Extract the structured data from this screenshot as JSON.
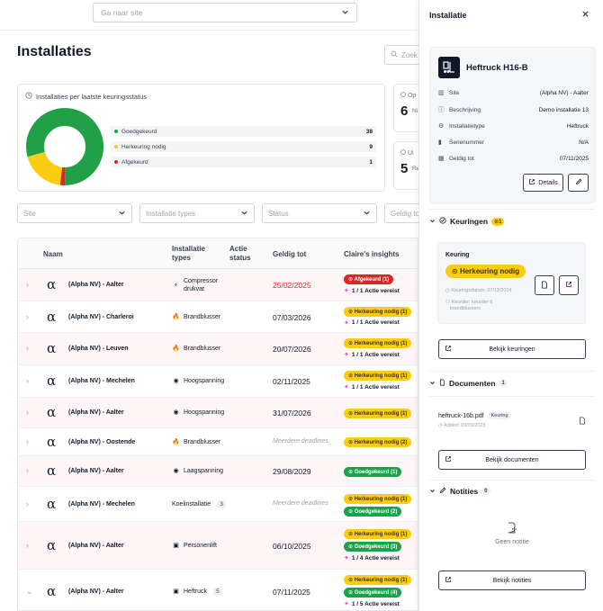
{
  "header": {
    "site_placeholder": "Ga naar site",
    "page_title": "Installaties",
    "search_placeholder": "Zoek"
  },
  "status_chart": {
    "title": "Installaties per laatste keuringsstatus",
    "legend": [
      {
        "label": "Goedgekeurd",
        "count": "38",
        "color": "#22a047"
      },
      {
        "label": "Herkeuring nodig",
        "count": "9",
        "color": "#facc15"
      },
      {
        "label": "Afgekeurd",
        "count": "1",
        "color": "#dc2626"
      }
    ]
  },
  "chart_data": {
    "type": "pie",
    "title": "Installaties per laatste keuringsstatus",
    "categories": [
      "Goedgekeurd",
      "Herkeuring nodig",
      "Afgekeurd"
    ],
    "values": [
      38,
      9,
      1
    ],
    "colors": [
      "#22a047",
      "#facc15",
      "#dc2626"
    ],
    "donut": true
  },
  "stat_cards": [
    {
      "label": "Op",
      "value": "6",
      "sub": "Ni"
    },
    {
      "label": "Ui",
      "value": "5",
      "sub": "Re"
    }
  ],
  "filters": [
    {
      "placeholder": "Site"
    },
    {
      "placeholder": "Installatie types"
    },
    {
      "placeholder": "Status"
    },
    {
      "placeholder": "Geldig to"
    }
  ],
  "table": {
    "headers": [
      "Naam",
      "Installatie types",
      "Actie status",
      "Geldig tot",
      "Claire's insights"
    ],
    "rows": [
      {
        "name": "(Alpha NV) - Aalter",
        "type": "Compressor drukvat",
        "type_icon": "⚡",
        "count": "",
        "date": "25/02/2025",
        "date_style": "red",
        "expanded": false,
        "pills": [
          {
            "text": "Afgekeurd (1)",
            "color": "red"
          }
        ],
        "action": "1 / 1 Actie vereist"
      },
      {
        "name": "(Alpha NV) - Charleroi",
        "type": "Brandblusser",
        "type_icon": "🔥",
        "count": "",
        "date": "07/03/2026",
        "date_style": "",
        "expanded": false,
        "pills": [
          {
            "text": "Herkeuring nodig (1)",
            "color": "yellow"
          }
        ],
        "action": "1 / 1 Actie vereist"
      },
      {
        "name": "(Alpha NV) - Leuven",
        "type": "Brandblusser",
        "type_icon": "🔥",
        "count": "",
        "date": "20/07/2026",
        "date_style": "",
        "expanded": false,
        "pills": [
          {
            "text": "Herkeuring nodig (1)",
            "color": "yellow"
          }
        ],
        "action": "1 / 1 Actie vereist"
      },
      {
        "name": "(Alpha NV) - Mechelen",
        "type": "Hoogspanning",
        "type_icon": "◉",
        "count": "",
        "date": "02/11/2025",
        "date_style": "",
        "expanded": false,
        "pills": [
          {
            "text": "Herkeuring nodig (1)",
            "color": "yellow"
          }
        ],
        "action": "1 / 1 Actie vereist"
      },
      {
        "name": "(Alpha NV) - Aalter",
        "type": "Hoogspanning",
        "type_icon": "◉",
        "count": "",
        "date": "31/07/2026",
        "date_style": "",
        "expanded": false,
        "pills": [
          {
            "text": "Herkeuring nodig (1)",
            "color": "yellow"
          }
        ],
        "action": ""
      },
      {
        "name": "(Alpha NV) - Oostende",
        "type": "Brandblusser",
        "type_icon": "🔥",
        "count": "",
        "date": "Meerdere deadlines",
        "date_style": "deadline",
        "expanded": false,
        "pills": [
          {
            "text": "Herkeuring nodig (2)",
            "color": "yellow"
          }
        ],
        "action": ""
      },
      {
        "name": "(Alpha NV) - Aalter",
        "type": "Laagspanning",
        "type_icon": "◉",
        "count": "",
        "date": "29/08/2029",
        "date_style": "",
        "expanded": false,
        "pills": [
          {
            "text": "Goedgekeurd (1)",
            "color": "green"
          }
        ],
        "action": ""
      },
      {
        "name": "(Alpha NV) - Mechelen",
        "type": "Koelinstallatie",
        "type_icon": "",
        "count": "3",
        "date": "Meerdere deadlines",
        "date_style": "deadline",
        "expanded": false,
        "pills": [
          {
            "text": "Herkeuring nodig (1)",
            "color": "yellow"
          },
          {
            "text": "Goedgekeurd (2)",
            "color": "green"
          }
        ],
        "action": ""
      },
      {
        "name": "(Alpha NV) - Aalter",
        "type": "Personenlift",
        "type_icon": "▣",
        "count": "",
        "date": "06/10/2025",
        "date_style": "",
        "expanded": false,
        "pills": [
          {
            "text": "Herkeuring nodig (1)",
            "color": "yellow"
          },
          {
            "text": "Goedgekeurd (3)",
            "color": "green"
          }
        ],
        "action": "1 / 4 Actie vereist"
      },
      {
        "name": "(Alpha NV) - Aalter",
        "type": "Heftruck",
        "type_icon": "▣",
        "count": "5",
        "date": "07/11/2025",
        "date_style": "",
        "expanded": true,
        "pills": [
          {
            "text": "Herkeuring nodig (1)",
            "color": "yellow"
          },
          {
            "text": "Goedgekeurd (4)",
            "color": "green"
          }
        ],
        "action": "1 / 5 Actie vereist"
      }
    ]
  },
  "panel": {
    "title": "Installatie",
    "machine_name": "Heftruck H16-B",
    "info": [
      {
        "icon": "▥",
        "label": "Site",
        "value": "(Alpha NV) - Aalter"
      },
      {
        "icon": "ⓘ",
        "label": "Beschrijving",
        "value": "Demo installatie 13"
      },
      {
        "icon": "⚙",
        "label": "Installatietype",
        "value": "Heftruck"
      },
      {
        "icon": "▮",
        "label": "Serienummer",
        "value": "N/A"
      },
      {
        "icon": "▦",
        "label": "Geldig tot",
        "value": "07/11/2025"
      }
    ],
    "details_label": "Details",
    "keuringen": {
      "title": "Keuringen",
      "badge": "1",
      "card_title": "Keuring",
      "status": "Herkeuring nodig",
      "date": "Keuringsdatum: 07/11/2024",
      "keurder": "Keurder: keurder 6",
      "keurder2": "brandblussers",
      "button": "Bekijk keuringen"
    },
    "documenten": {
      "title": "Documenten",
      "badge": "1",
      "file": "heftruck-16b.pdf",
      "tag": "Keuring",
      "added": "Added: 03/09/2025",
      "button": "Bekijk documenten"
    },
    "notities": {
      "title": "Notities",
      "badge": "0",
      "empty": "Geen notitie",
      "button": "Bekijk notities"
    }
  }
}
